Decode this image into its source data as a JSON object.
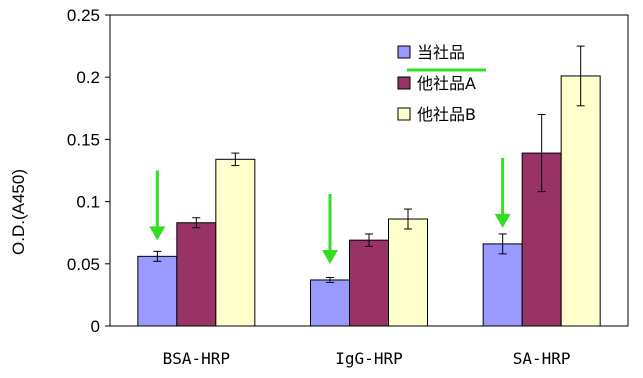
{
  "chart_data": {
    "type": "bar",
    "title": "",
    "xlabel": "",
    "ylabel": "O.D.(A450)",
    "ylim": [
      0,
      0.25
    ],
    "yticks": [
      "0",
      "0.05",
      "0.1",
      "0.15",
      "0.2",
      "0.25"
    ],
    "categories": [
      "BSA-HRP",
      "IgG-HRP",
      "SA-HRP"
    ],
    "series": [
      {
        "name": "当社品",
        "color": "#9999ff",
        "values": [
          0.056,
          0.037,
          0.066
        ],
        "errors": [
          0.004,
          0.002,
          0.008
        ]
      },
      {
        "name": "他社品A",
        "color": "#993366",
        "values": [
          0.083,
          0.069,
          0.139
        ],
        "errors": [
          0.004,
          0.005,
          0.031
        ]
      },
      {
        "name": "他社品B",
        "color": "#ffffcc",
        "values": [
          0.134,
          0.086,
          0.201
        ],
        "errors": [
          0.005,
          0.008,
          0.024
        ]
      }
    ],
    "grid": false,
    "legend_position": "top-right",
    "annotations": {
      "arrow_color": "#33dd22",
      "arrows": "green downward arrows above the 当社品 bar in each group; green underline beneath the 当社品 legend label"
    }
  }
}
